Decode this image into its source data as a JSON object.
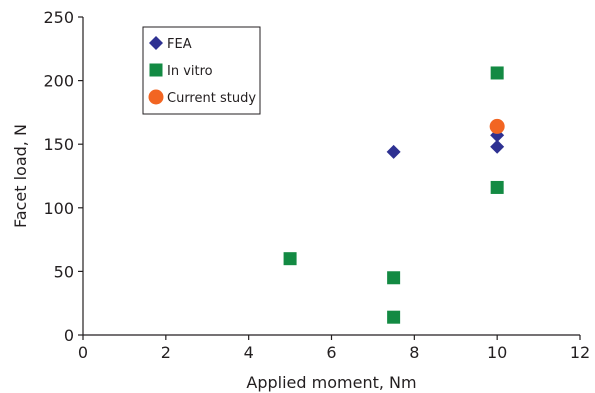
{
  "chart_data": {
    "type": "scatter",
    "title": "",
    "xlabel": "Applied moment, Nm",
    "ylabel": "Facet load, N",
    "xlim": [
      0,
      12
    ],
    "ylim": [
      0,
      250
    ],
    "xticks": [
      0,
      2,
      4,
      6,
      8,
      10,
      12
    ],
    "yticks": [
      0,
      50,
      100,
      150,
      200,
      250
    ],
    "grid": false,
    "legend_position": "top-left",
    "series": [
      {
        "name": "FEA",
        "marker": "diamond",
        "color": "#2e3192",
        "points": [
          {
            "x": 7.5,
            "y": 144
          },
          {
            "x": 10,
            "y": 157
          },
          {
            "x": 10,
            "y": 148
          }
        ]
      },
      {
        "name": "In vitro",
        "marker": "square",
        "color": "#138a43",
        "points": [
          {
            "x": 5,
            "y": 60
          },
          {
            "x": 7.5,
            "y": 45
          },
          {
            "x": 7.5,
            "y": 14
          },
          {
            "x": 10,
            "y": 206
          },
          {
            "x": 10,
            "y": 116
          }
        ]
      },
      {
        "name": "Current study",
        "marker": "circle",
        "color": "#f26522",
        "points": [
          {
            "x": 10,
            "y": 164
          }
        ]
      }
    ]
  }
}
